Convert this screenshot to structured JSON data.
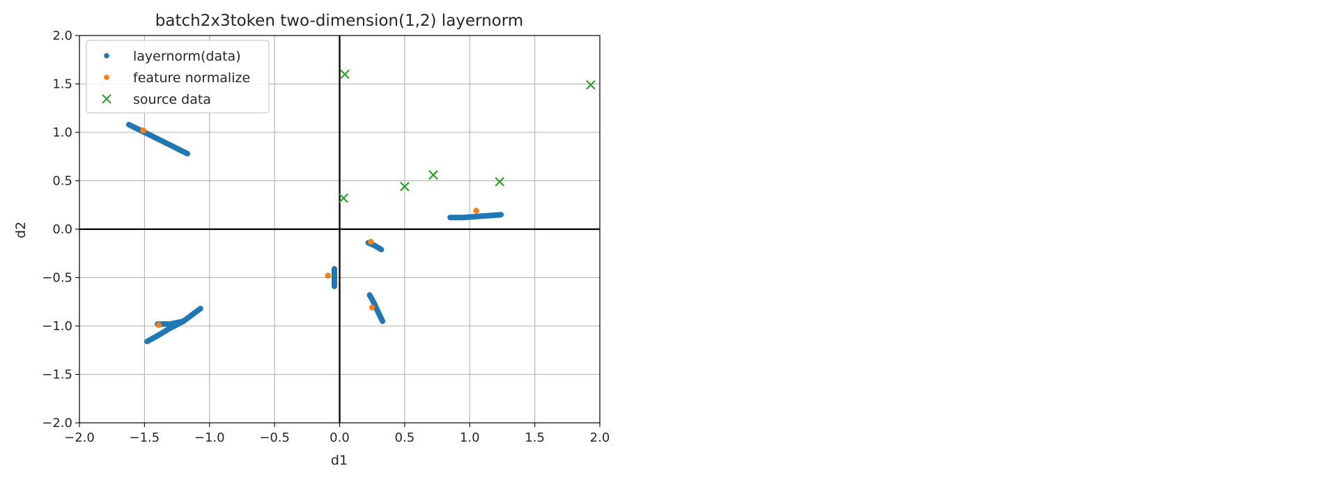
{
  "chart_data": {
    "type": "scatter",
    "title": "batch2x3token two-dimension(1,2) layernorm",
    "xlabel": "d1",
    "ylabel": "d2",
    "xlim": [
      -2.0,
      2.0
    ],
    "ylim": [
      -2.0,
      2.0
    ],
    "xticks": [
      -2.0,
      -1.5,
      -1.0,
      -0.5,
      0.0,
      0.5,
      1.0,
      1.5,
      2.0
    ],
    "yticks": [
      -2.0,
      -1.5,
      -1.0,
      -0.5,
      0.0,
      0.5,
      1.0,
      1.5,
      2.0
    ],
    "xtick_labels": [
      "−2.0",
      "−1.5",
      "−1.0",
      "−0.5",
      "0.0",
      "0.5",
      "1.0",
      "1.5",
      "2.0"
    ],
    "ytick_labels": [
      "−2.0",
      "−1.5",
      "−1.0",
      "−0.5",
      "0.0",
      "0.5",
      "1.0",
      "1.5",
      "2.0"
    ],
    "grid": true,
    "zero_lines": true,
    "legend": "upper-left",
    "series": [
      {
        "name": "layernorm(data)",
        "marker": "dot",
        "color": "#1f77b4",
        "segments": [
          [
            [
              -1.62,
              1.08
            ],
            [
              -1.5,
              1.0
            ],
            [
              -1.38,
              0.92
            ],
            [
              -1.26,
              0.84
            ],
            [
              -1.17,
              0.78
            ]
          ],
          [
            [
              -1.48,
              -1.16
            ],
            [
              -1.4,
              -1.1
            ],
            [
              -1.3,
              -1.02
            ],
            [
              -1.2,
              -0.95
            ],
            [
              -1.14,
              -0.89
            ],
            [
              -1.07,
              -0.82
            ]
          ],
          [
            [
              -1.4,
              -0.98
            ],
            [
              -1.3,
              -0.98
            ],
            [
              -1.2,
              -0.95
            ]
          ],
          [
            [
              -0.04,
              -0.41
            ],
            [
              -0.04,
              -0.5
            ],
            [
              -0.04,
              -0.59
            ]
          ],
          [
            [
              0.22,
              -0.14
            ],
            [
              0.27,
              -0.17
            ],
            [
              0.32,
              -0.21
            ]
          ],
          [
            [
              0.23,
              -0.68
            ],
            [
              0.26,
              -0.75
            ],
            [
              0.29,
              -0.84
            ],
            [
              0.33,
              -0.95
            ]
          ],
          [
            [
              0.85,
              0.12
            ],
            [
              0.95,
              0.12
            ],
            [
              1.05,
              0.13
            ],
            [
              1.15,
              0.14
            ],
            [
              1.24,
              0.15
            ]
          ]
        ]
      },
      {
        "name": "feature normalize",
        "marker": "dot",
        "color": "#ff7f0e",
        "points": [
          [
            -1.51,
            1.02
          ],
          [
            -1.39,
            -0.99
          ],
          [
            -0.09,
            -0.48
          ],
          [
            0.24,
            -0.13
          ],
          [
            0.25,
            -0.81
          ],
          [
            1.05,
            0.19
          ]
        ]
      },
      {
        "name": "source data",
        "marker": "x",
        "color": "#2ca02c",
        "points": [
          [
            0.04,
            1.6
          ],
          [
            1.93,
            1.49
          ],
          [
            0.72,
            0.56
          ],
          [
            0.5,
            0.44
          ],
          [
            1.23,
            0.49
          ],
          [
            0.03,
            0.32
          ]
        ]
      }
    ]
  }
}
